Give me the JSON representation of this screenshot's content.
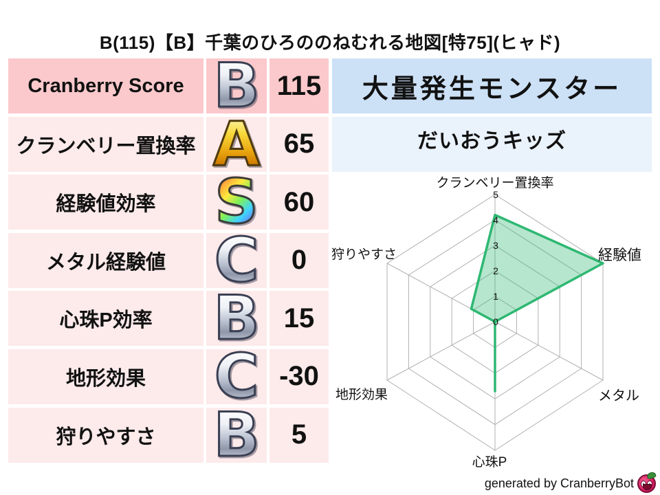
{
  "title": "B(115)【B】千葉のひろののねむれる地図[特75](ヒャド)",
  "stats_table": {
    "rows": [
      {
        "label": "Cranberry Score",
        "grade": "B",
        "grade_style": "silver",
        "value": "115"
      },
      {
        "label": "クランベリー置換率",
        "grade": "A",
        "grade_style": "gold",
        "value": "65"
      },
      {
        "label": "経験値効率",
        "grade": "S",
        "grade_style": "rainbow",
        "value": "60"
      },
      {
        "label": "メタル経験値",
        "grade": "C",
        "grade_style": "silver",
        "value": "0"
      },
      {
        "label": "心珠P効率",
        "grade": "B",
        "grade_style": "silver",
        "value": "15"
      },
      {
        "label": "地形効果",
        "grade": "C",
        "grade_style": "silver",
        "value": "-30"
      },
      {
        "label": "狩りやすさ",
        "grade": "B",
        "grade_style": "silver",
        "value": "5"
      }
    ]
  },
  "monster_panel": {
    "header": "大量発生モンスター",
    "monster_name": "だいおうキッズ"
  },
  "footer": {
    "credit": "generated by CranberryBot",
    "icon": "cranberrybot-mascot-icon"
  },
  "colors": {
    "row_header_pink": "#fbc9cc",
    "row_pink": "#fdeaea",
    "panel_header_blue": "#cce0f6",
    "panel_blue": "#eaf2fb",
    "radar_stroke": "#2eb872",
    "radar_fill": "rgba(46,184,114,0.35)",
    "grid_gray": "#b0b0b0"
  },
  "chart_data": {
    "type": "radar",
    "axes": [
      "クランベリー置換率",
      "経験値",
      "メタル",
      "心珠P",
      "地形効果",
      "狩りやすさ"
    ],
    "values": [
      4.2,
      5,
      0,
      2.7,
      0,
      1.1
    ],
    "max": 5,
    "ticks": [
      0,
      1,
      2,
      3,
      4,
      5
    ],
    "rings": 5,
    "grid": "hexagonal rings with spokes, slight vertical squash",
    "legend": "none",
    "stroke_color": "#2eb872",
    "fill_color": "rgba(46,184,114,0.35)"
  }
}
